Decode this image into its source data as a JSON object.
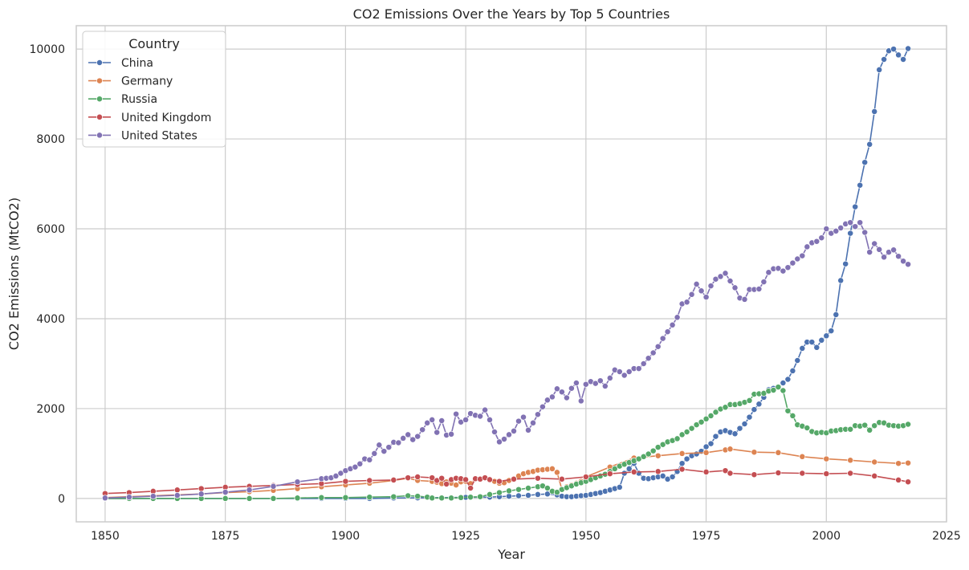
{
  "chart_data": {
    "type": "line",
    "title": "CO2 Emissions Over the Years by Top 5 Countries",
    "xlabel": "Year",
    "ylabel": "CO2 Emissions (MtCO2)",
    "xlim": [
      1844,
      2025
    ],
    "ylim": [
      -520,
      10520
    ],
    "xticks": [
      1850,
      1875,
      1900,
      1925,
      1950,
      1975,
      2000,
      2025
    ],
    "yticks": [
      0,
      2000,
      4000,
      6000,
      8000,
      10000
    ],
    "grid": true,
    "legend": {
      "title": "Country",
      "placement": "top-left"
    },
    "series": [
      {
        "name": "China",
        "color": "#4c72b0",
        "x": [
          1850,
          1855,
          1860,
          1865,
          1870,
          1875,
          1880,
          1885,
          1890,
          1895,
          1900,
          1905,
          1910,
          1915,
          1920,
          1925,
          1930,
          1932,
          1934,
          1936,
          1938,
          1940,
          1942,
          1944,
          1945,
          1946,
          1947,
          1948,
          1949,
          1950,
          1951,
          1952,
          1953,
          1954,
          1955,
          1956,
          1957,
          1958,
          1959,
          1960,
          1961,
          1962,
          1963,
          1964,
          1965,
          1966,
          1967,
          1968,
          1969,
          1970,
          1971,
          1972,
          1973,
          1974,
          1975,
          1976,
          1977,
          1978,
          1979,
          1980,
          1981,
          1982,
          1983,
          1984,
          1985,
          1986,
          1987,
          1988,
          1989,
          1990,
          1991,
          1992,
          1993,
          1994,
          1995,
          1996,
          1997,
          1998,
          1999,
          2000,
          2001,
          2002,
          2003,
          2004,
          2005,
          2006,
          2007,
          2008,
          2009,
          2010,
          2011,
          2012,
          2013,
          2014,
          2015,
          2016,
          2017
        ],
        "y": [
          0,
          0,
          0,
          0,
          0,
          0,
          0,
          0,
          0,
          0,
          0,
          0,
          10,
          15,
          20,
          25,
          30,
          40,
          50,
          60,
          70,
          90,
          100,
          80,
          50,
          40,
          40,
          50,
          60,
          70,
          90,
          110,
          130,
          160,
          190,
          220,
          250,
          560,
          660,
          780,
          560,
          450,
          440,
          460,
          480,
          500,
          430,
          480,
          600,
          780,
          880,
          950,
          990,
          1050,
          1150,
          1220,
          1380,
          1480,
          1510,
          1470,
          1440,
          1560,
          1660,
          1810,
          1980,
          2100,
          2250,
          2420,
          2450,
          2480,
          2570,
          2650,
          2840,
          3070,
          3340,
          3480,
          3480,
          3360,
          3520,
          3620,
          3730,
          4090,
          4850,
          5220,
          5900,
          6490,
          6970,
          7480,
          7880,
          8610,
          9540,
          9770,
          9960,
          10000,
          9870,
          9770,
          10010
        ]
      },
      {
        "name": "Germany",
        "color": "#dd8452",
        "x": [
          1850,
          1855,
          1860,
          1865,
          1870,
          1875,
          1880,
          1885,
          1890,
          1895,
          1900,
          1905,
          1910,
          1913,
          1915,
          1918,
          1919,
          1920,
          1921,
          1922,
          1923,
          1924,
          1925,
          1926,
          1927,
          1928,
          1929,
          1930,
          1931,
          1932,
          1933,
          1934,
          1935,
          1936,
          1937,
          1938,
          1939,
          1940,
          1941,
          1942,
          1943,
          1944,
          1945,
          1946,
          1947,
          1948,
          1949,
          1950,
          1955,
          1960,
          1965,
          1970,
          1975,
          1979,
          1980,
          1985,
          1990,
          1995,
          2000,
          2005,
          2010,
          2015,
          2017
        ],
        "y": [
          20,
          40,
          60,
          80,
          100,
          130,
          150,
          180,
          220,
          260,
          300,
          340,
          400,
          450,
          400,
          380,
          360,
          330,
          370,
          340,
          300,
          370,
          380,
          330,
          440,
          430,
          470,
          420,
          380,
          340,
          350,
          400,
          440,
          500,
          550,
          580,
          600,
          630,
          640,
          650,
          660,
          580,
          200,
          260,
          300,
          340,
          380,
          480,
          700,
          900,
          950,
          1000,
          1020,
          1080,
          1100,
          1030,
          1020,
          930,
          880,
          850,
          810,
          780,
          790
        ]
      },
      {
        "name": "Russia",
        "color": "#55a868",
        "x": [
          1850,
          1855,
          1860,
          1865,
          1870,
          1875,
          1880,
          1885,
          1890,
          1895,
          1900,
          1905,
          1910,
          1913,
          1915,
          1917,
          1918,
          1920,
          1922,
          1924,
          1926,
          1928,
          1930,
          1932,
          1934,
          1936,
          1938,
          1940,
          1941,
          1942,
          1943,
          1944,
          1945,
          1946,
          1947,
          1948,
          1949,
          1950,
          1951,
          1952,
          1953,
          1954,
          1955,
          1956,
          1957,
          1958,
          1959,
          1960,
          1961,
          1962,
          1963,
          1964,
          1965,
          1966,
          1967,
          1968,
          1969,
          1970,
          1971,
          1972,
          1973,
          1974,
          1975,
          1976,
          1977,
          1978,
          1979,
          1980,
          1981,
          1982,
          1983,
          1984,
          1985,
          1986,
          1987,
          1988,
          1989,
          1990,
          1991,
          1992,
          1993,
          1994,
          1995,
          1996,
          1997,
          1998,
          1999,
          2000,
          2001,
          2002,
          2003,
          2004,
          2005,
          2006,
          2007,
          2008,
          2009,
          2010,
          2011,
          2012,
          2013,
          2014,
          2015,
          2016,
          2017
        ],
        "y": [
          0,
          0,
          0,
          0,
          0,
          0,
          0,
          0,
          10,
          20,
          20,
          30,
          40,
          60,
          50,
          30,
          10,
          10,
          10,
          20,
          30,
          40,
          90,
          130,
          170,
          200,
          230,
          260,
          280,
          230,
          160,
          140,
          200,
          240,
          280,
          320,
          350,
          380,
          420,
          460,
          500,
          540,
          600,
          660,
          720,
          760,
          800,
          840,
          880,
          930,
          990,
          1060,
          1140,
          1200,
          1260,
          1290,
          1330,
          1420,
          1480,
          1560,
          1640,
          1700,
          1770,
          1840,
          1920,
          1990,
          2030,
          2090,
          2090,
          2110,
          2140,
          2180,
          2320,
          2330,
          2340,
          2390,
          2410,
          2480,
          2400,
          1950,
          1840,
          1640,
          1610,
          1570,
          1490,
          1460,
          1470,
          1460,
          1500,
          1510,
          1530,
          1540,
          1540,
          1620,
          1610,
          1630,
          1520,
          1620,
          1690,
          1680,
          1630,
          1620,
          1610,
          1620,
          1650
        ]
      },
      {
        "name": "United Kingdom",
        "color": "#c44e52",
        "x": [
          1850,
          1855,
          1860,
          1865,
          1870,
          1875,
          1880,
          1885,
          1890,
          1895,
          1900,
          1905,
          1910,
          1913,
          1915,
          1918,
          1919,
          1920,
          1921,
          1922,
          1923,
          1924,
          1925,
          1926,
          1927,
          1928,
          1929,
          1930,
          1932,
          1935,
          1940,
          1945,
          1950,
          1955,
          1960,
          1965,
          1970,
          1975,
          1979,
          1980,
          1985,
          1990,
          1995,
          2000,
          2005,
          2010,
          2015,
          2017
        ],
        "y": [
          110,
          130,
          160,
          190,
          220,
          250,
          270,
          290,
          310,
          330,
          380,
          400,
          410,
          460,
          480,
          460,
          400,
          450,
          320,
          420,
          450,
          440,
          420,
          230,
          440,
          430,
          460,
          420,
          380,
          430,
          450,
          430,
          480,
          550,
          590,
          600,
          650,
          590,
          620,
          560,
          530,
          570,
          560,
          550,
          560,
          500,
          410,
          370
        ]
      },
      {
        "name": "United States",
        "color": "#8172b3",
        "x": [
          1850,
          1855,
          1860,
          1865,
          1870,
          1875,
          1880,
          1885,
          1890,
          1895,
          1896,
          1897,
          1898,
          1899,
          1900,
          1901,
          1902,
          1903,
          1904,
          1905,
          1906,
          1907,
          1908,
          1909,
          1910,
          1911,
          1912,
          1913,
          1914,
          1915,
          1916,
          1917,
          1918,
          1919,
          1920,
          1921,
          1922,
          1923,
          1924,
          1925,
          1926,
          1927,
          1928,
          1929,
          1930,
          1931,
          1932,
          1933,
          1934,
          1935,
          1936,
          1937,
          1938,
          1939,
          1940,
          1941,
          1942,
          1943,
          1944,
          1945,
          1946,
          1947,
          1948,
          1949,
          1950,
          1951,
          1952,
          1953,
          1954,
          1955,
          1956,
          1957,
          1958,
          1959,
          1960,
          1961,
          1962,
          1963,
          1964,
          1965,
          1966,
          1967,
          1968,
          1969,
          1970,
          1971,
          1972,
          1973,
          1974,
          1975,
          1976,
          1977,
          1978,
          1979,
          1980,
          1981,
          1982,
          1983,
          1984,
          1985,
          1986,
          1987,
          1988,
          1989,
          1990,
          1991,
          1992,
          1993,
          1994,
          1995,
          1996,
          1997,
          1998,
          1999,
          2000,
          2001,
          2002,
          2003,
          2004,
          2005,
          2006,
          2007,
          2008,
          2009,
          2010,
          2011,
          2012,
          2013,
          2014,
          2015,
          2016,
          2017
        ],
        "y": [
          10,
          30,
          50,
          70,
          100,
          140,
          190,
          270,
          370,
          440,
          450,
          460,
          500,
          560,
          620,
          660,
          700,
          770,
          880,
          860,
          1000,
          1190,
          1050,
          1140,
          1250,
          1240,
          1340,
          1420,
          1310,
          1380,
          1530,
          1680,
          1750,
          1470,
          1730,
          1410,
          1430,
          1880,
          1700,
          1750,
          1890,
          1850,
          1830,
          1970,
          1750,
          1480,
          1260,
          1320,
          1420,
          1500,
          1720,
          1810,
          1520,
          1680,
          1870,
          2040,
          2190,
          2260,
          2440,
          2370,
          2240,
          2450,
          2570,
          2170,
          2540,
          2600,
          2560,
          2620,
          2500,
          2680,
          2860,
          2820,
          2740,
          2820,
          2890,
          2890,
          3000,
          3120,
          3240,
          3380,
          3560,
          3710,
          3860,
          4030,
          4330,
          4370,
          4540,
          4770,
          4620,
          4480,
          4730,
          4880,
          4940,
          5010,
          4840,
          4690,
          4460,
          4430,
          4650,
          4650,
          4660,
          4820,
          5030,
          5110,
          5120,
          5060,
          5140,
          5240,
          5330,
          5400,
          5600,
          5690,
          5720,
          5800,
          6000,
          5900,
          5950,
          6020,
          6110,
          6140,
          6050,
          6140,
          5920,
          5480,
          5670,
          5540,
          5370,
          5480,
          5530,
          5390,
          5280,
          5210
        ]
      }
    ]
  }
}
